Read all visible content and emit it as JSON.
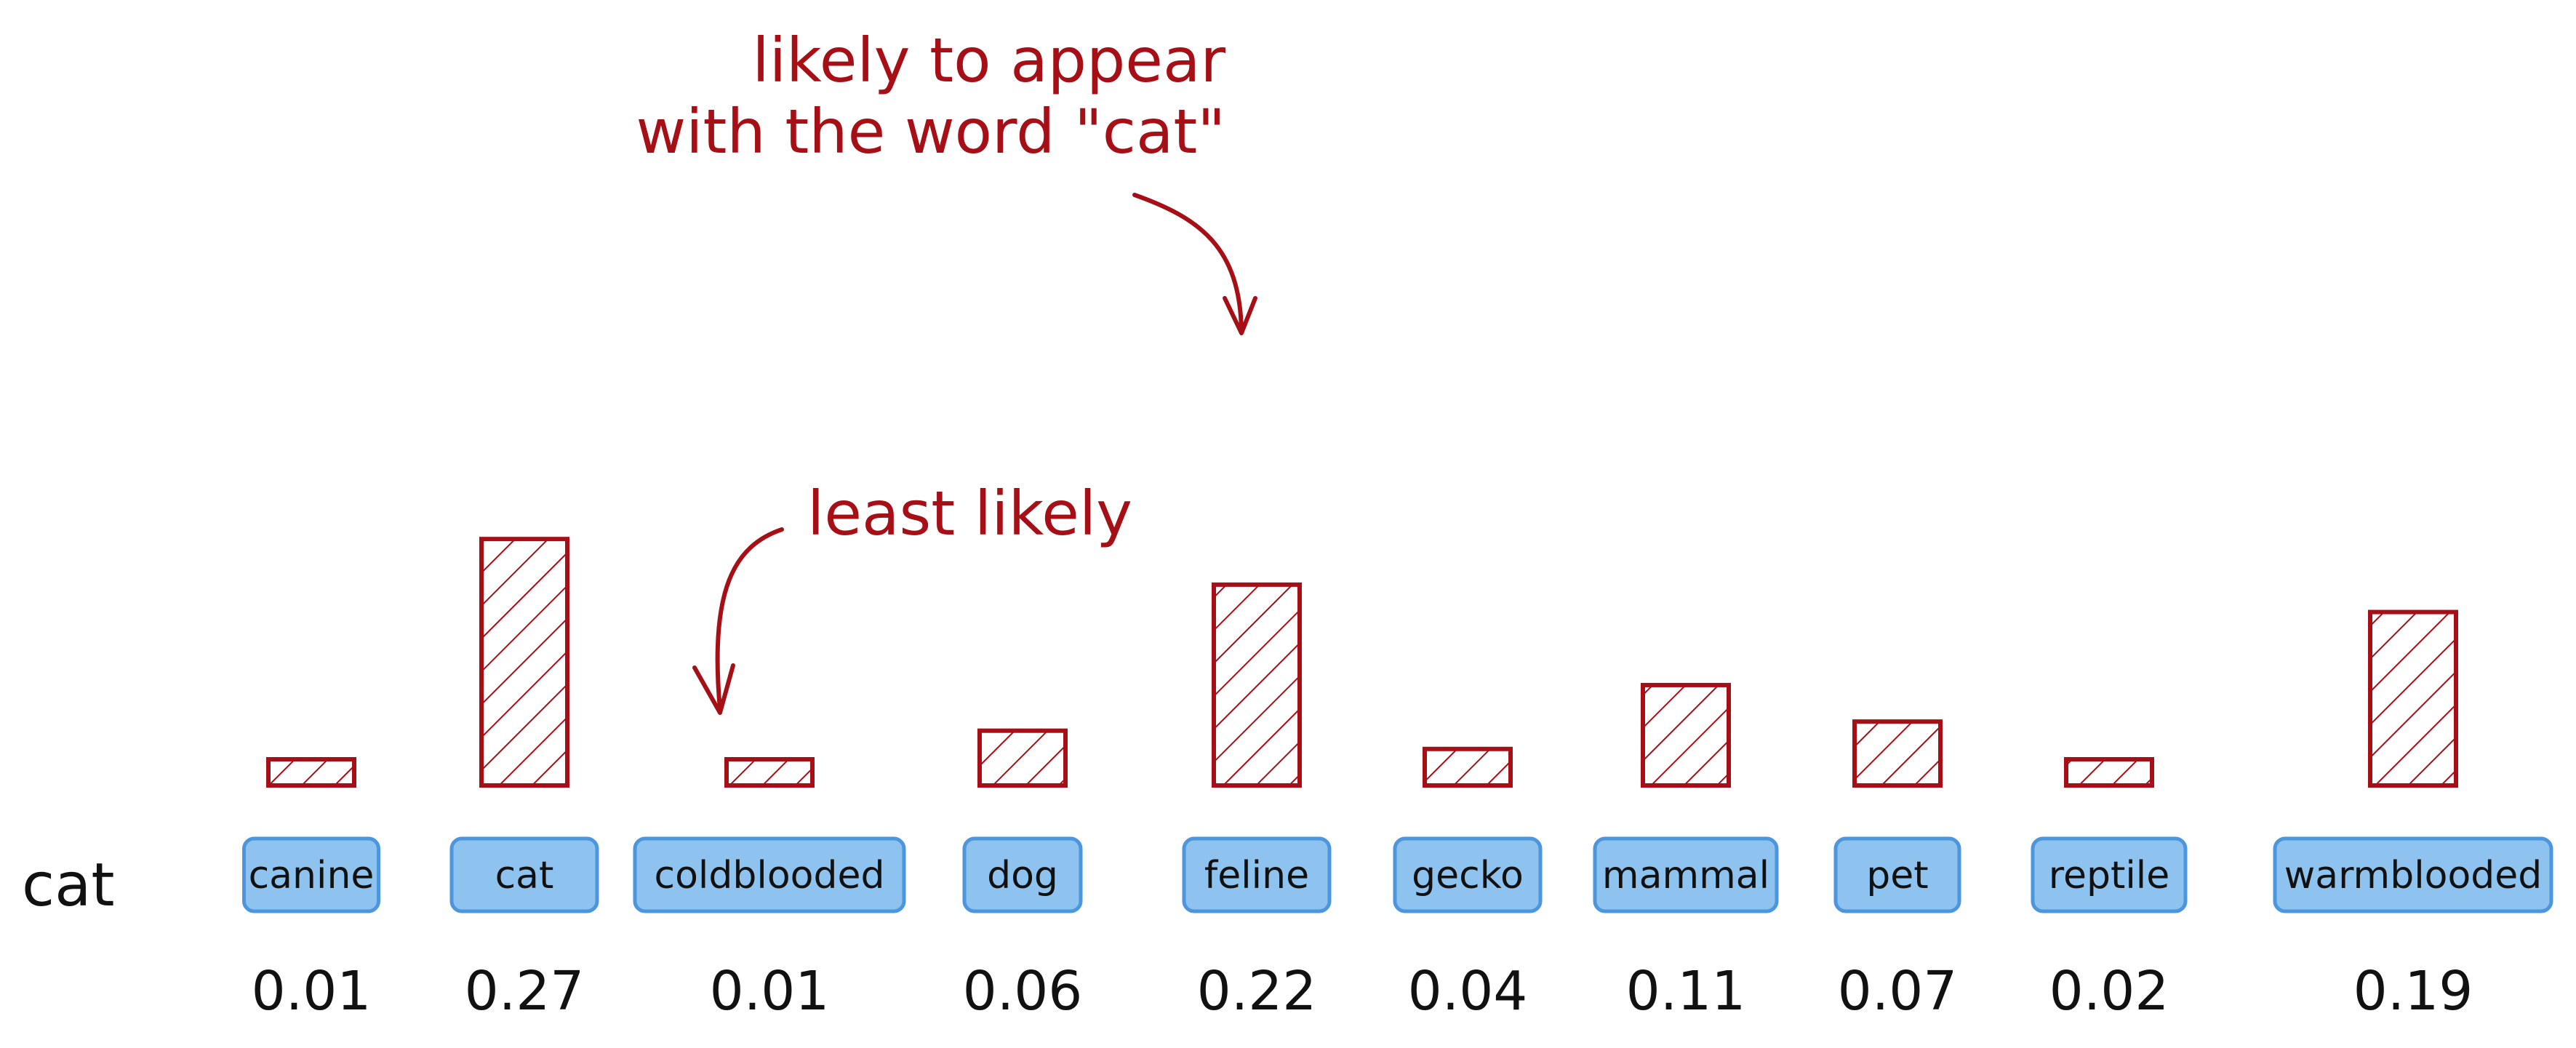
{
  "chart_data": {
    "type": "bar",
    "row_label": "cat",
    "categories": [
      "canine",
      "cat",
      "coldblooded",
      "dog",
      "feline",
      "gecko",
      "mammal",
      "pet",
      "reptile",
      "warmblooded"
    ],
    "values": [
      0.01,
      0.27,
      0.01,
      0.06,
      0.22,
      0.04,
      0.11,
      0.07,
      0.02,
      0.19
    ],
    "value_labels": [
      "0.01",
      "0.27",
      "0.01",
      "0.06",
      "0.22",
      "0.04",
      "0.11",
      "0.07",
      "0.02",
      "0.19"
    ],
    "bar_color": "#a50f15",
    "token_color": "#8ec3f0",
    "annotations": [
      {
        "target": "feline",
        "lines": [
          "likely to appear",
          "with the word \"cat\""
        ]
      },
      {
        "target": "coldblooded",
        "lines": [
          "least likely"
        ]
      }
    ]
  }
}
